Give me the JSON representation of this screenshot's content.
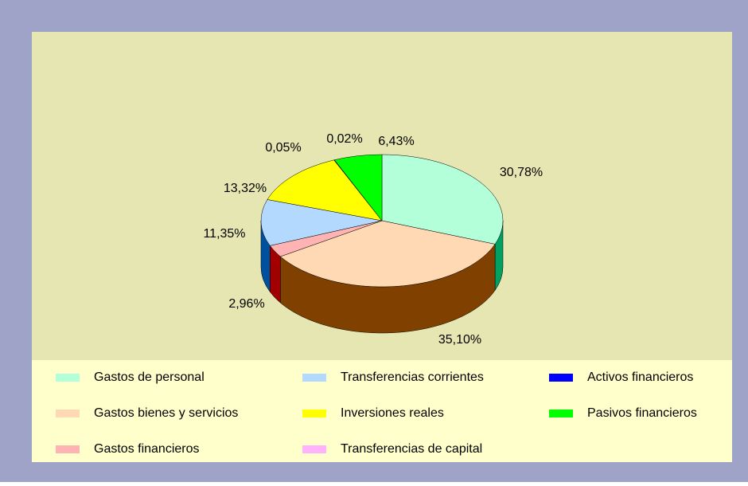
{
  "chart_data": {
    "type": "pie3d",
    "categories": [
      "Gastos de personal",
      "Gastos bienes y servicios",
      "Gastos financieros",
      "Transferencias corrientes",
      "Inversiones reales",
      "Transferencias de capital",
      "Activos financieros",
      "Pasivos financieros"
    ],
    "values": [
      30.78,
      35.1,
      2.96,
      11.35,
      13.32,
      0.05,
      0.02,
      6.43
    ],
    "value_labels": [
      "30,78%",
      "35,10%",
      "2,96%",
      "11,35%",
      "13,32%",
      "0,05%",
      "0,02%",
      "6,43%"
    ],
    "colors": [
      "#b3ffd9",
      "#ffd9b3",
      "#ffb3b3",
      "#b3d9ff",
      "#ffff00",
      "#ffb3ff",
      "#0000ff",
      "#00ff00"
    ],
    "side_colors": [
      "#00a060",
      "#804000",
      "#a00000",
      "#0050a0",
      "#a0a000",
      "#a000a0",
      "#000080",
      "#00a000"
    ],
    "legend": "bottom"
  }
}
